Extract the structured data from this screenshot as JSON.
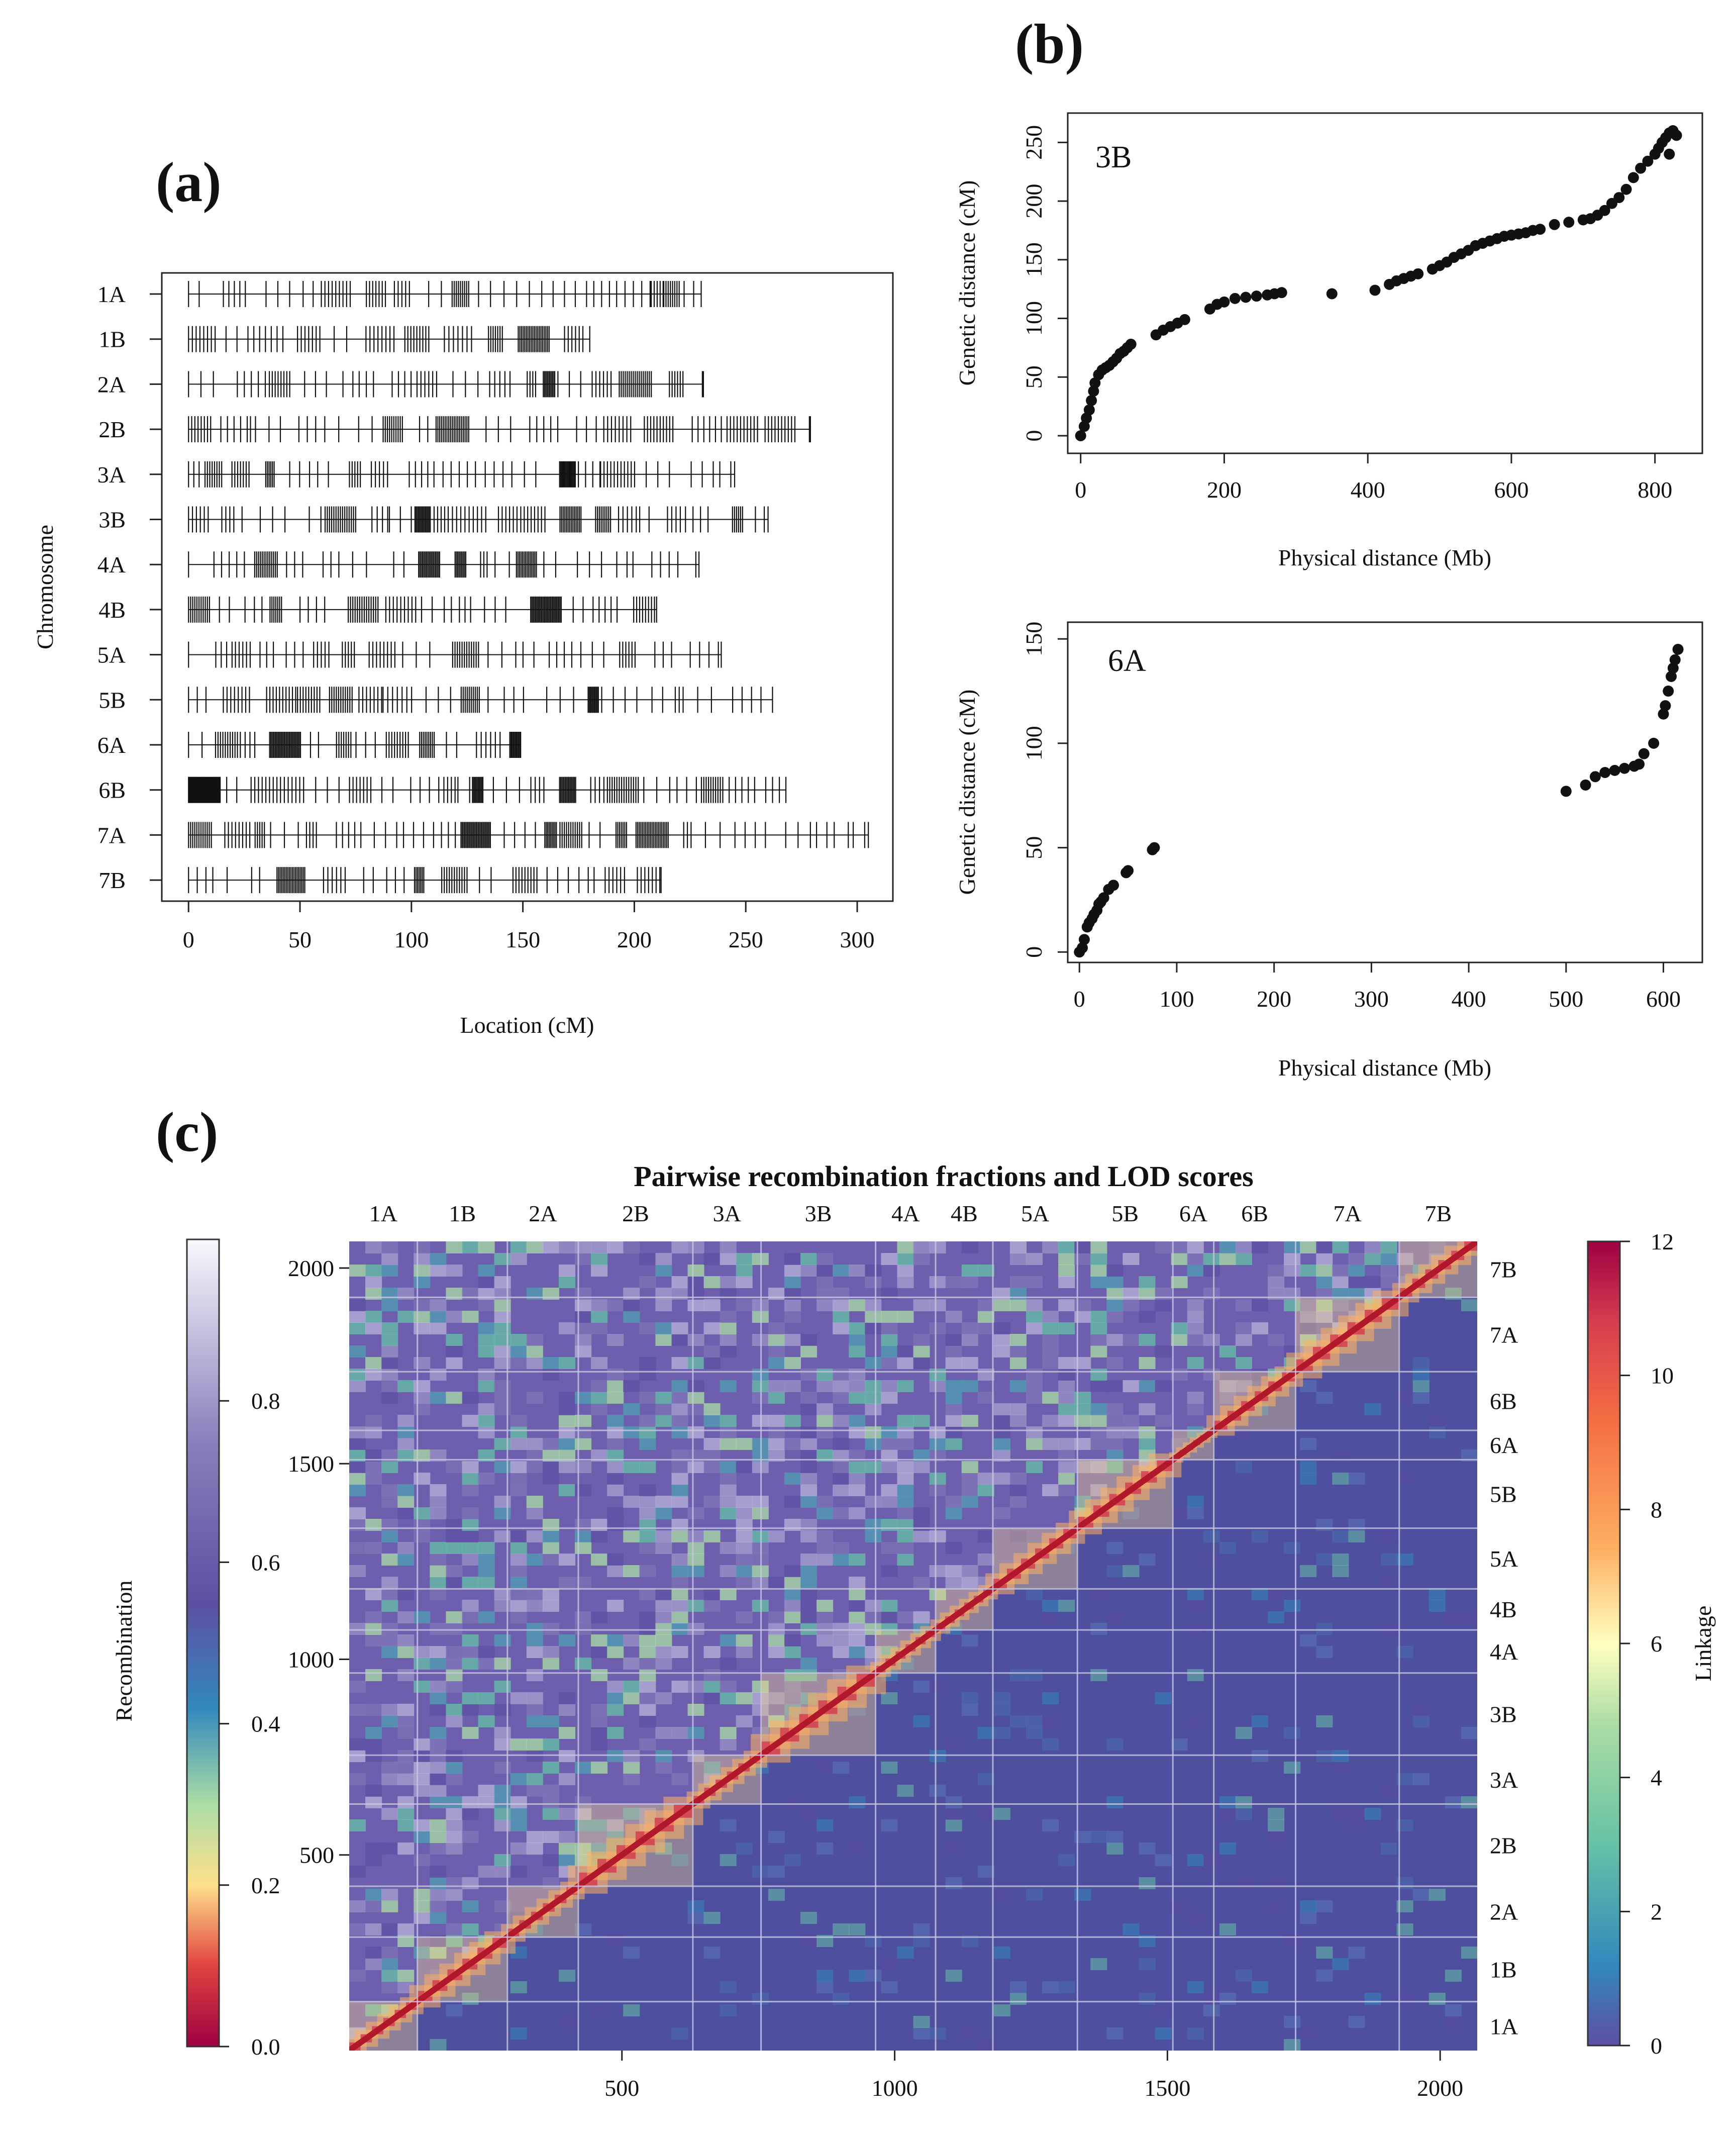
{
  "panel_labels": {
    "a": "(a)",
    "b": "(b)",
    "c": "(c)"
  },
  "chart_data": [
    {
      "id": "a",
      "type": "marker-map",
      "xlabel": "Location (cM)",
      "ylabel": "Chromosome",
      "xlim": [
        -12,
        316
      ],
      "xticks": [
        0,
        50,
        100,
        150,
        200,
        250,
        300
      ],
      "chromosomes": [
        {
          "name": "1A",
          "length": 230
        },
        {
          "name": "1B",
          "length": 180
        },
        {
          "name": "2A",
          "length": 231
        },
        {
          "name": "2B",
          "length": 279
        },
        {
          "name": "3A",
          "length": 245
        },
        {
          "name": "3B",
          "length": 260
        },
        {
          "name": "4A",
          "length": 229
        },
        {
          "name": "4B",
          "length": 210
        },
        {
          "name": "5A",
          "length": 239
        },
        {
          "name": "5B",
          "length": 262
        },
        {
          "name": "6A",
          "length": 149
        },
        {
          "name": "6B",
          "length": 268
        },
        {
          "name": "7A",
          "length": 305
        },
        {
          "name": "7B",
          "length": 212
        }
      ]
    },
    {
      "id": "b-3B",
      "type": "scatter",
      "label": "3B",
      "xlabel": "Physical distance (Mb)",
      "ylabel": "Genetic distance (cM)",
      "xlim": [
        -18,
        866
      ],
      "ylim": [
        -15,
        275
      ],
      "xticks": [
        0,
        200,
        400,
        600,
        800
      ],
      "yticks": [
        0,
        50,
        100,
        150,
        200,
        250
      ],
      "x": [
        0,
        5,
        8,
        12,
        15,
        18,
        20,
        25,
        30,
        35,
        40,
        45,
        50,
        55,
        60,
        65,
        70,
        105,
        115,
        125,
        135,
        145,
        180,
        190,
        200,
        215,
        230,
        245,
        260,
        270,
        280,
        350,
        410,
        430,
        440,
        450,
        460,
        470,
        490,
        500,
        510,
        520,
        530,
        540,
        550,
        560,
        570,
        580,
        590,
        600,
        610,
        620,
        630,
        640,
        660,
        680,
        700,
        710,
        720,
        730,
        740,
        750,
        760,
        770,
        780,
        790,
        800,
        805,
        810,
        815,
        820,
        825,
        828,
        820,
        830
      ],
      "y": [
        0,
        8,
        15,
        22,
        30,
        38,
        45,
        52,
        56,
        58,
        60,
        63,
        66,
        70,
        72,
        75,
        78,
        86,
        90,
        93,
        96,
        99,
        108,
        112,
        114,
        117,
        118,
        119,
        120,
        121,
        122,
        121,
        124,
        129,
        132,
        134,
        136,
        138,
        142,
        145,
        148,
        152,
        155,
        158,
        162,
        164,
        166,
        168,
        170,
        171,
        172,
        173,
        175,
        176,
        180,
        182,
        184,
        185,
        188,
        192,
        198,
        203,
        210,
        220,
        228,
        234,
        240,
        245,
        250,
        254,
        258,
        260,
        257,
        240,
        256
      ]
    },
    {
      "id": "b-6A",
      "type": "scatter",
      "label": "6A",
      "xlabel": "Physical distance (Mb)",
      "ylabel": "Genetic distance (cM)",
      "xlim": [
        -12,
        640
      ],
      "ylim": [
        -5,
        158
      ],
      "xticks": [
        0,
        100,
        200,
        300,
        400,
        500,
        600
      ],
      "yticks": [
        0,
        50,
        100,
        150
      ],
      "x": [
        0,
        3,
        5,
        8,
        10,
        13,
        15,
        18,
        20,
        22,
        25,
        30,
        35,
        48,
        50,
        75,
        77,
        500,
        520,
        530,
        540,
        550,
        560,
        570,
        575,
        580,
        590,
        600,
        602,
        605,
        608,
        610,
        612,
        615
      ],
      "y": [
        0,
        2,
        6,
        12,
        14,
        16,
        18,
        20,
        23,
        24,
        26,
        30,
        32,
        38,
        39,
        49,
        50,
        77,
        80,
        84,
        86,
        87,
        88,
        89,
        90,
        95,
        100,
        114,
        118,
        125,
        132,
        136,
        140,
        145
      ]
    },
    {
      "id": "c",
      "type": "heatmap",
      "title": "Pairwise recombination fractions and LOD scores",
      "n_markers": 2068,
      "x_ticks": [
        500,
        1000,
        1500,
        2000
      ],
      "y_ticks": [
        500,
        1000,
        1500,
        2000
      ],
      "chromosomes": [
        {
          "name": "1A",
          "start": 0,
          "end": 125
        },
        {
          "name": "1B",
          "start": 125,
          "end": 290
        },
        {
          "name": "2A",
          "start": 290,
          "end": 420
        },
        {
          "name": "2B",
          "start": 420,
          "end": 630
        },
        {
          "name": "3A",
          "start": 630,
          "end": 755
        },
        {
          "name": "3B",
          "start": 755,
          "end": 965
        },
        {
          "name": "4A",
          "start": 965,
          "end": 1075
        },
        {
          "name": "4B",
          "start": 1075,
          "end": 1180
        },
        {
          "name": "5A",
          "start": 1180,
          "end": 1335
        },
        {
          "name": "5B",
          "start": 1335,
          "end": 1510
        },
        {
          "name": "6A",
          "start": 1510,
          "end": 1585
        },
        {
          "name": "6B",
          "start": 1585,
          "end": 1735
        },
        {
          "name": "7A",
          "start": 1735,
          "end": 1925
        },
        {
          "name": "7B",
          "start": 1925,
          "end": 2068
        }
      ],
      "recombination_scale": {
        "label": "Recombination",
        "min": 0.0,
        "max": 1.0,
        "ticks": [
          0.0,
          0.2,
          0.4,
          0.6,
          0.8
        ]
      },
      "linkage_scale": {
        "label": "Linkage",
        "min": 0,
        "max": 12,
        "ticks": [
          0,
          2,
          4,
          6,
          8,
          10,
          12
        ]
      }
    }
  ],
  "colors": {
    "background": "#ffffff",
    "lower_triangle": "#4f4fa0",
    "spectral": [
      "#9e0142",
      "#d53e4f",
      "#f46d43",
      "#fdae61",
      "#fee08b",
      "#ffffbf",
      "#e6f598",
      "#abdda4",
      "#66c2a5",
      "#3288bd",
      "#5e4fa2"
    ],
    "recomb_scale": [
      "#9e0142",
      "#f46d43",
      "#fee08b",
      "#abdda4",
      "#3288bd",
      "#5e4fa2",
      "#8a7fbc",
      "#f5f5fa"
    ],
    "linkage_scale": [
      "#5e4fa2",
      "#3288bd",
      "#66c2a5",
      "#abdda4",
      "#e6f598",
      "#fee08b",
      "#fdae61",
      "#f46d43",
      "#d53e4f",
      "#9e0142"
    ]
  }
}
